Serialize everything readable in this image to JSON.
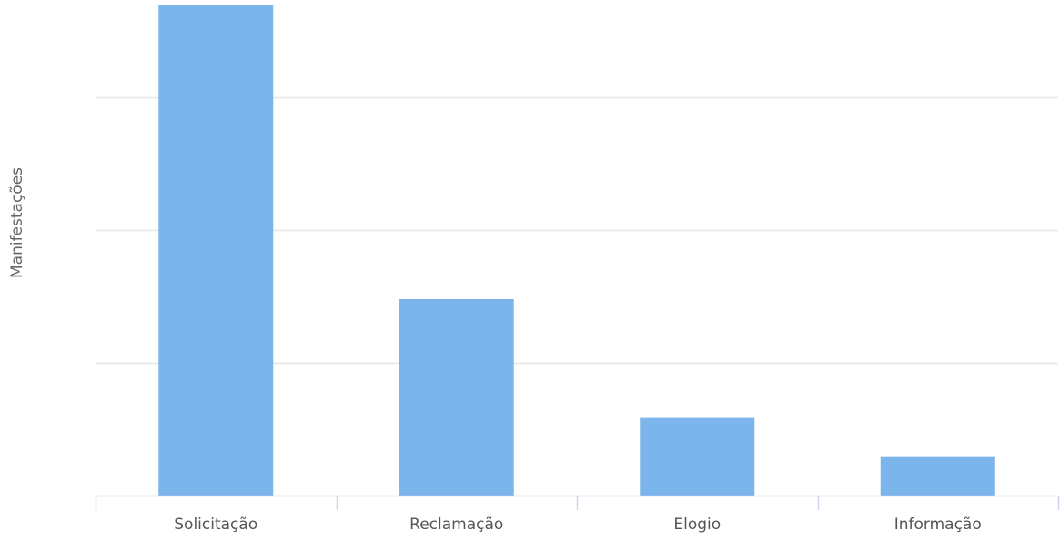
{
  "chart_data": {
    "type": "bar",
    "categories": [
      "Solicitação",
      "Reclamação",
      "Elogio",
      "Informação"
    ],
    "values": [
      3700,
      1480,
      585,
      290
    ],
    "ylabel": "Manifestações",
    "xlabel": "",
    "ylim": [
      0,
      3700
    ],
    "gridlines": [
      1000,
      2000,
      3000
    ],
    "grid": true,
    "bar_color": "#7cb5ec",
    "grid_color": "#e6e6e6",
    "axis_color": "#ccd6eb"
  }
}
